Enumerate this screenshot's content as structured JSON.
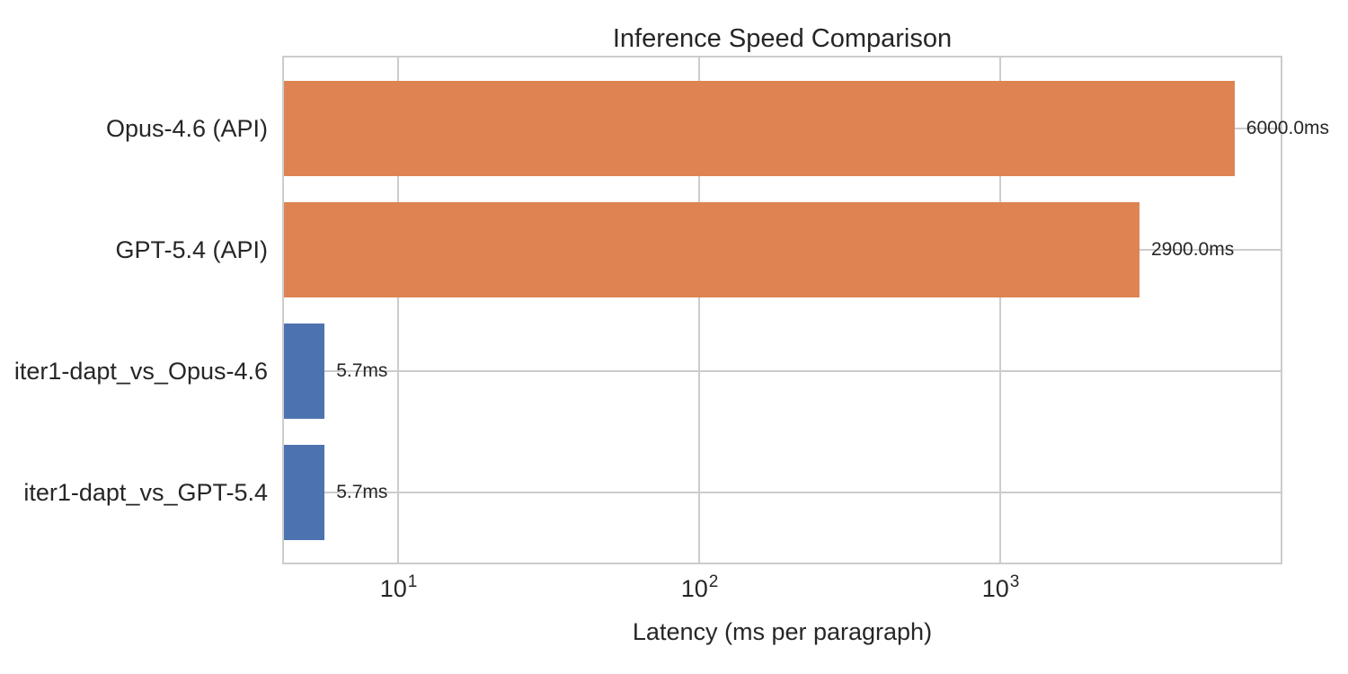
{
  "chart_data": {
    "type": "bar",
    "orientation": "horizontal",
    "title": "Inference Speed Comparison",
    "xlabel": "Latency (ms per paragraph)",
    "ylabel": "",
    "x_scale": "log",
    "xlim": [
      4.12,
      8650
    ],
    "grid": true,
    "legend": "none",
    "x_ticks": [
      {
        "value": 10,
        "base": "10",
        "exponent": "1"
      },
      {
        "value": 100,
        "base": "10",
        "exponent": "2"
      },
      {
        "value": 1000,
        "base": "10",
        "exponent": "3"
      }
    ],
    "categories": [
      "Opus-4.6 (API)",
      "GPT-5.4 (API)",
      "iter1-dapt_vs_Opus-4.6",
      "iter1-dapt_vs_GPT-5.4"
    ],
    "values": [
      6000.0,
      2900.0,
      5.7,
      5.7
    ],
    "value_labels": [
      "6000.0ms",
      "2900.0ms",
      "5.7ms",
      "5.7ms"
    ],
    "bar_colors": [
      "#dd8452",
      "#dd8452",
      "#4c72b0",
      "#4c72b0"
    ]
  },
  "style": {
    "background": "#ffffff",
    "grid_color": "#cccccc",
    "spine_color": "#cccccc",
    "text_color": "#262626",
    "bar_orange": "#dd8452",
    "bar_blue": "#4c72b0"
  }
}
